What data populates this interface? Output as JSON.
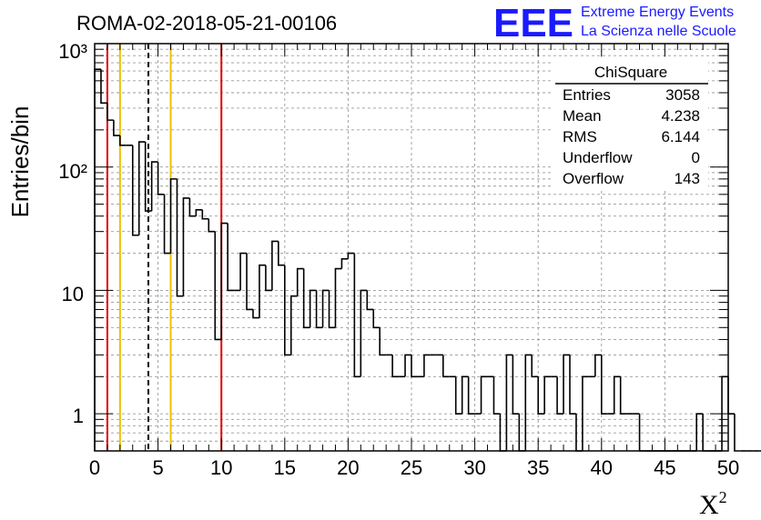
{
  "chart_data": {
    "type": "bar",
    "title": "ROMA-02-2018-05-21-00106",
    "xlabel": "X",
    "xlabel_sup": "2",
    "ylabel": "Entries/bin",
    "xlim": [
      0,
      50
    ],
    "ylim": [
      0.5,
      1000
    ],
    "log_y": true,
    "grid": true,
    "x_ticks": [
      "0",
      "5",
      "10",
      "15",
      "20",
      "25",
      "30",
      "35",
      "40",
      "45",
      "50"
    ],
    "y_ticks": [
      "1",
      "10",
      "10²",
      "10³"
    ],
    "bin_width": 0.5,
    "values": [
      620,
      330,
      240,
      180,
      150,
      150,
      28,
      160,
      44,
      110,
      60,
      20,
      80,
      9,
      56,
      40,
      45,
      38,
      30,
      4,
      35,
      10,
      10,
      20,
      7,
      6,
      16,
      10,
      25,
      16,
      3,
      9,
      15,
      5,
      10,
      5,
      10,
      5,
      15,
      18,
      20,
      2,
      10,
      7,
      5,
      3,
      3,
      2,
      2,
      3,
      2,
      2,
      3,
      3,
      3,
      2,
      2,
      1,
      2,
      1,
      1,
      2,
      2,
      1,
      0,
      3,
      1,
      0,
      3,
      2,
      1,
      2,
      2,
      1,
      3,
      1,
      0,
      2,
      2,
      3,
      1,
      1,
      2,
      1,
      1,
      1,
      0,
      0,
      0,
      0,
      0,
      0,
      0,
      0,
      0,
      1,
      0,
      0,
      0,
      2,
      1,
      0,
      0,
      0,
      0,
      0,
      0,
      0,
      0,
      0,
      0,
      0,
      0,
      0,
      0,
      0,
      0,
      0,
      0,
      0,
      0,
      0
    ],
    "vertical_lines": [
      {
        "x": 1,
        "color": "#e00000",
        "style": "solid"
      },
      {
        "x": 2,
        "color": "#f0c000",
        "style": "solid"
      },
      {
        "x": 4.238,
        "color": "#000000",
        "style": "dashed"
      },
      {
        "x": 6,
        "color": "#f0c000",
        "style": "solid"
      },
      {
        "x": 10,
        "color": "#e00000",
        "style": "solid"
      }
    ]
  },
  "stats_box": {
    "title": "ChiSquare",
    "rows": [
      {
        "label": "Entries",
        "value": "3058"
      },
      {
        "label": "Mean",
        "value": "4.238"
      },
      {
        "label": "RMS",
        "value": "6.144"
      },
      {
        "label": "Underflow",
        "value": "0"
      },
      {
        "label": "Overflow",
        "value": "143"
      }
    ]
  },
  "logo": {
    "mark": "EEE",
    "line1": "Extreme Energy Events",
    "line2": "La Scienza nelle Scuole"
  },
  "colors": {
    "logo": "#1a1aff",
    "grid": "#9a9a9a",
    "red_line": "#e00000",
    "yellow_line": "#f0c000"
  }
}
